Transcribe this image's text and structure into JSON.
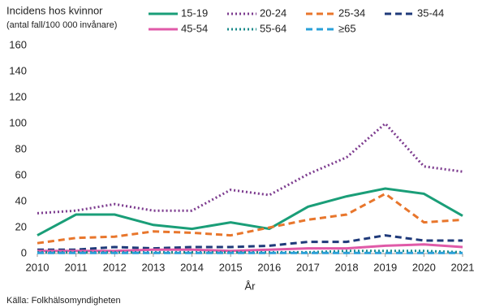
{
  "chart_data": {
    "type": "line",
    "title": "Incidens hos kvinnor",
    "subtitle": "(antal fall/100 000 invånare)",
    "x_label": "År",
    "source": "Källa: Folkhälsomyndigheten",
    "x": [
      2010,
      2011,
      2012,
      2013,
      2014,
      2015,
      2016,
      2017,
      2018,
      2019,
      2020,
      2021
    ],
    "xlim": [
      2010,
      2021
    ],
    "xticks": [
      2010,
      2011,
      2012,
      2013,
      2014,
      2015,
      2016,
      2017,
      2018,
      2019,
      2020,
      2021
    ],
    "ylim": [
      0,
      160
    ],
    "yticks": [
      0,
      20,
      40,
      60,
      80,
      100,
      120,
      140,
      160
    ],
    "grid": false,
    "series": [
      {
        "name": "15-19",
        "color": "#1a9e78",
        "style": "solid",
        "values": [
          14,
          30,
          30,
          22,
          19,
          24,
          19,
          36,
          44,
          50,
          46,
          29
        ]
      },
      {
        "name": "20-24",
        "color": "#7d3c8f",
        "style": "dotted",
        "values": [
          31,
          33,
          38,
          33,
          33,
          49,
          45,
          61,
          74,
          100,
          67,
          63
        ]
      },
      {
        "name": "25-34",
        "color": "#e8762c",
        "style": "dashed",
        "values": [
          8,
          12,
          13,
          17,
          16,
          14,
          20,
          26,
          30,
          46,
          24,
          26
        ]
      },
      {
        "name": "35-44",
        "color": "#1f3a7a",
        "style": "dashed",
        "values": [
          3,
          3,
          5,
          4,
          5,
          5,
          6,
          9,
          9,
          14,
          10,
          10
        ]
      },
      {
        "name": "45-54",
        "color": "#e05aa8",
        "style": "solid",
        "values": [
          2,
          2,
          2,
          3,
          3,
          2,
          3,
          4,
          4,
          6,
          7,
          5
        ]
      },
      {
        "name": "55-64",
        "color": "#1a8a8a",
        "style": "dotted",
        "values": [
          1,
          1,
          1,
          1,
          1,
          1,
          1,
          1,
          2,
          2,
          2,
          1
        ]
      },
      {
        "name": "≥65",
        "color": "#2aa0d8",
        "style": "dashed",
        "values": [
          0.5,
          0.5,
          0.5,
          0.5,
          0.5,
          0.5,
          0.5,
          0.5,
          0.5,
          0.5,
          0.5,
          0.5
        ]
      }
    ]
  }
}
